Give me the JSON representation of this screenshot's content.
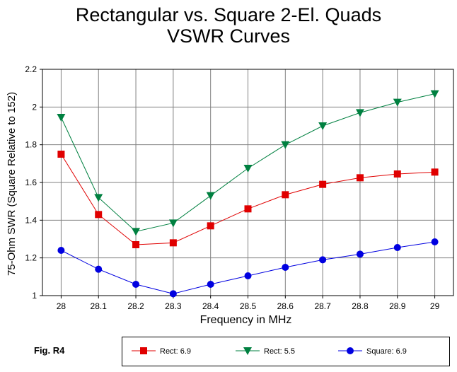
{
  "chart_data": {
    "type": "line",
    "title": [
      "Rectangular vs. Square 2-El. Quads",
      "VSWR Curves"
    ],
    "xlabel": "Frequency in MHz",
    "ylabel": "75-Ohm SWR (Square Relative to 152)",
    "x": [
      "28",
      "28.1",
      "28.2",
      "28.3",
      "28.4",
      "28.5",
      "28.6",
      "28.7",
      "28.8",
      "28.9",
      "29"
    ],
    "xlim": [
      28,
      29
    ],
    "ylim": [
      1,
      2.2
    ],
    "yticks": [
      "1",
      "1.2",
      "1.4",
      "1.6",
      "1.8",
      "2",
      "2.2"
    ],
    "grid": true,
    "legend_position": "bottom",
    "series": [
      {
        "name": "Rect: 6.9",
        "color": "#e00000",
        "marker": "square",
        "values": [
          1.75,
          1.43,
          1.27,
          1.28,
          1.37,
          1.46,
          1.535,
          1.59,
          1.625,
          1.645,
          1.655
        ]
      },
      {
        "name": "Rect: 5.5",
        "color": "#008040",
        "marker": "triangle-down",
        "values": [
          1.945,
          1.52,
          1.34,
          1.385,
          1.53,
          1.675,
          1.8,
          1.9,
          1.97,
          2.025,
          2.07
        ]
      },
      {
        "name": "Square: 6.9",
        "color": "#0000e0",
        "marker": "circle",
        "values": [
          1.24,
          1.14,
          1.06,
          1.01,
          1.06,
          1.105,
          1.15,
          1.19,
          1.22,
          1.255,
          1.285
        ]
      }
    ]
  },
  "figure_label": "Fig. R4"
}
